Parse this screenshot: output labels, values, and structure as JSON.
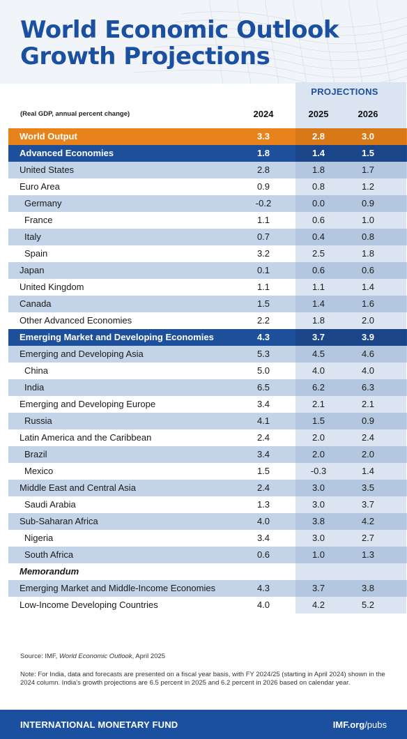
{
  "title_line1": "World Economic Outlook",
  "title_line2": "Growth Projections",
  "projections_label": "PROJECTIONS",
  "subtitle": "(Real GDP, annual percent change)",
  "years": [
    "2024",
    "2025",
    "2026"
  ],
  "rows": [
    {
      "label": "World Output",
      "v": [
        "3.3",
        "2.8",
        "3.0"
      ],
      "style": "orange"
    },
    {
      "label": "Advanced Economies",
      "v": [
        "1.8",
        "1.4",
        "1.5"
      ],
      "style": "navy"
    },
    {
      "label": "United States",
      "v": [
        "2.8",
        "1.8",
        "1.7"
      ],
      "style": "band"
    },
    {
      "label": "Euro Area",
      "v": [
        "0.9",
        "0.8",
        "1.2"
      ],
      "style": "plain"
    },
    {
      "label": "Germany",
      "v": [
        "-0.2",
        "0.0",
        "0.9"
      ],
      "style": "band",
      "sub": true
    },
    {
      "label": "France",
      "v": [
        "1.1",
        "0.6",
        "1.0"
      ],
      "style": "plain",
      "sub": true
    },
    {
      "label": "Italy",
      "v": [
        "0.7",
        "0.4",
        "0.8"
      ],
      "style": "band",
      "sub": true
    },
    {
      "label": "Spain",
      "v": [
        "3.2",
        "2.5",
        "1.8"
      ],
      "style": "plain",
      "sub": true
    },
    {
      "label": "Japan",
      "v": [
        "0.1",
        "0.6",
        "0.6"
      ],
      "style": "band"
    },
    {
      "label": "United Kingdom",
      "v": [
        "1.1",
        "1.1",
        "1.4"
      ],
      "style": "plain"
    },
    {
      "label": "Canada",
      "v": [
        "1.5",
        "1.4",
        "1.6"
      ],
      "style": "band"
    },
    {
      "label": "Other Advanced Economies",
      "v": [
        "2.2",
        "1.8",
        "2.0"
      ],
      "style": "plain"
    },
    {
      "label": "Emerging Market and Developing Economies",
      "v": [
        "4.3",
        "3.7",
        "3.9"
      ],
      "style": "navy"
    },
    {
      "label": "Emerging and Developing Asia",
      "v": [
        "5.3",
        "4.5",
        "4.6"
      ],
      "style": "band"
    },
    {
      "label": "China",
      "v": [
        "5.0",
        "4.0",
        "4.0"
      ],
      "style": "plain",
      "sub": true
    },
    {
      "label": "India",
      "v": [
        "6.5",
        "6.2",
        "6.3"
      ],
      "style": "band",
      "sub": true
    },
    {
      "label": "Emerging and Developing Europe",
      "v": [
        "3.4",
        "2.1",
        "2.1"
      ],
      "style": "plain"
    },
    {
      "label": "Russia",
      "v": [
        "4.1",
        "1.5",
        "0.9"
      ],
      "style": "band",
      "sub": true
    },
    {
      "label": "Latin America and the Caribbean",
      "v": [
        "2.4",
        "2.0",
        "2.4"
      ],
      "style": "plain"
    },
    {
      "label": "Brazil",
      "v": [
        "3.4",
        "2.0",
        "2.0"
      ],
      "style": "band",
      "sub": true
    },
    {
      "label": "Mexico",
      "v": [
        "1.5",
        "-0.3",
        "1.4"
      ],
      "style": "plain",
      "sub": true
    },
    {
      "label": "Middle East and Central Asia",
      "v": [
        "2.4",
        "3.0",
        "3.5"
      ],
      "style": "band"
    },
    {
      "label": "Saudi Arabia",
      "v": [
        "1.3",
        "3.0",
        "3.7"
      ],
      "style": "plain",
      "sub": true
    },
    {
      "label": "Sub-Saharan Africa",
      "v": [
        "4.0",
        "3.8",
        "4.2"
      ],
      "style": "band"
    },
    {
      "label": "Nigeria",
      "v": [
        "3.4",
        "3.0",
        "2.7"
      ],
      "style": "plain",
      "sub": true
    },
    {
      "label": "South Africa",
      "v": [
        "0.6",
        "1.0",
        "1.3"
      ],
      "style": "band",
      "sub": true
    },
    {
      "label": "Memorandum",
      "v": [
        "",
        "",
        ""
      ],
      "style": "plain",
      "memo": true
    },
    {
      "label": "Emerging Market and Middle-Income Economies",
      "v": [
        "4.3",
        "3.7",
        "3.8"
      ],
      "style": "band"
    },
    {
      "label": "Low-Income Developing Countries",
      "v": [
        "4.0",
        "4.2",
        "5.2"
      ],
      "style": "plain"
    }
  ],
  "source_prefix": "Source: IMF, ",
  "source_title": "World Economic Outlook",
  "source_suffix": ", April 2025",
  "note": "Note: For India, data and forecasts are presented on a fiscal year basis, with FY 2024/25 (starting in April 2024) shown in the 2024 column. India's growth projections are 6.5 percent in 2025 and 6.2 percent in 2026 based on calendar year.",
  "footer_org": "INTERNATIONAL MONETARY FUND",
  "footer_url_bold": "IMF.org",
  "footer_url_rest": "/pubs",
  "colors": {
    "title_blue": "#1b4fa0",
    "orange": "#e8821b",
    "navy": "#1d4f9a",
    "band": "#c3d3e8",
    "proj_column": "#dbe5f1"
  }
}
